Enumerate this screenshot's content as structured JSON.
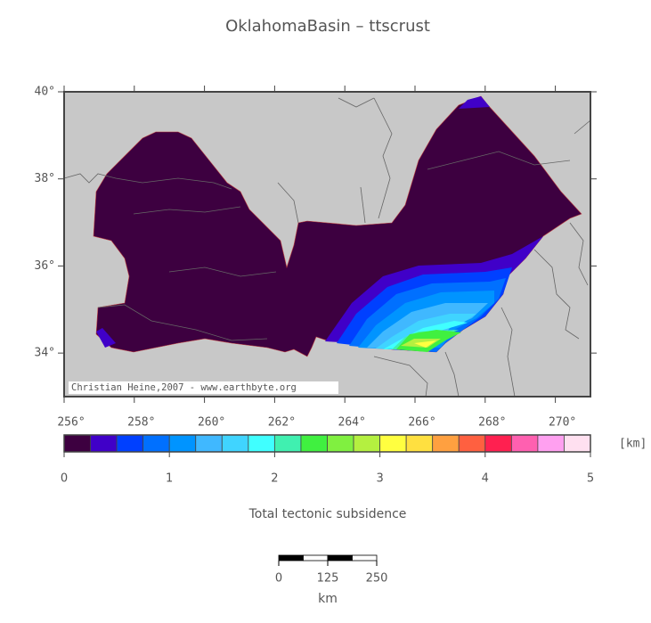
{
  "title": "OklahomaBasin – ttscrust",
  "map": {
    "xlim": [
      256,
      271
    ],
    "ylim": [
      33,
      40
    ],
    "lon_ticks": [
      {
        "value": 256,
        "label": "256°"
      },
      {
        "value": 258,
        "label": "258°"
      },
      {
        "value": 260,
        "label": "260°"
      },
      {
        "value": 262,
        "label": "262°"
      },
      {
        "value": 264,
        "label": "264°"
      },
      {
        "value": 266,
        "label": "266°"
      },
      {
        "value": 268,
        "label": "268°"
      },
      {
        "value": 270,
        "label": "270°"
      }
    ],
    "lat_ticks": [
      {
        "value": 34,
        "label": "34°"
      },
      {
        "value": 36,
        "label": "36°"
      },
      {
        "value": 38,
        "label": "38°"
      },
      {
        "value": 40,
        "label": "40°"
      }
    ],
    "credit": "Christian Heine,2007 - www.earthbyte.org"
  },
  "colorbar": {
    "title": "Total tectonic subsidence",
    "unit": "[km]",
    "limits": [
      0,
      5
    ],
    "ticks": [
      0,
      1,
      2,
      3,
      4,
      5
    ],
    "colors": [
      "#3d0040",
      "#4000c8",
      "#0040ff",
      "#0070ff",
      "#0094ff",
      "#40b8ff",
      "#40d4ff",
      "#40ffff",
      "#40f0b0",
      "#40f040",
      "#80f040",
      "#b4f040",
      "#ffff40",
      "#ffe040",
      "#ffa040",
      "#ff6040",
      "#ff2050",
      "#ff60b0",
      "#ffa0f0",
      "#ffe0f0"
    ]
  },
  "scalebar": {
    "ticks": [
      0,
      125,
      250
    ],
    "unit": "km"
  }
}
